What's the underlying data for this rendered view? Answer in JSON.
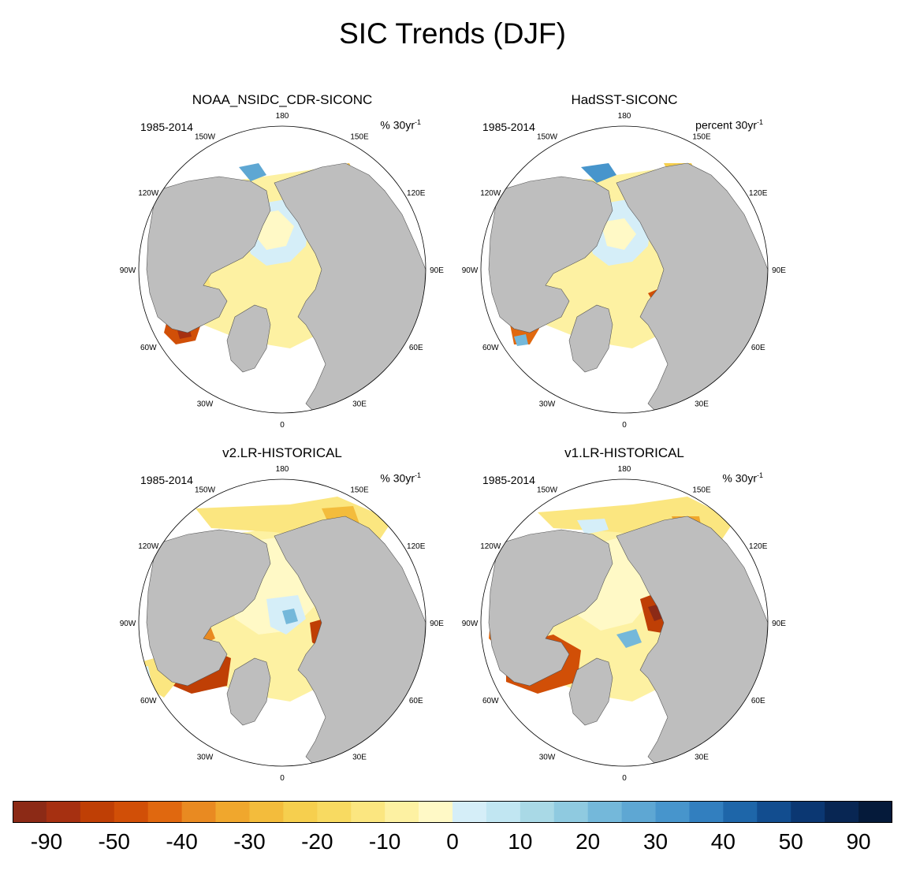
{
  "title": "SIC Trends (DJF)",
  "panels": [
    {
      "title": "NOAA_NSIDC_CDR-SICONC",
      "period": "1985-2014",
      "units_base": "% 30yr",
      "units_exp": "-1",
      "lon_labels": [
        "180",
        "150E",
        "120E",
        "90E",
        "60E",
        "30E",
        "0",
        "30W",
        "60W",
        "90W",
        "120W",
        "150W"
      ]
    },
    {
      "title": "HadSST-SICONC",
      "period": "1985-2014",
      "units_base": "percent 30yr",
      "units_exp": "-1",
      "lon_labels": [
        "180",
        "150E",
        "120E",
        "90E",
        "60E",
        "30E",
        "0",
        "30W",
        "60W",
        "90W",
        "120W",
        "150W"
      ]
    },
    {
      "title": "v2.LR-HISTORICAL",
      "period": "1985-2014",
      "units_base": "% 30yr",
      "units_exp": "-1",
      "lon_labels": [
        "180",
        "150E",
        "120E",
        "90E",
        "60E",
        "30E",
        "0",
        "30W",
        "60W",
        "90W",
        "120W",
        "150W"
      ]
    },
    {
      "title": "v1.LR-HISTORICAL",
      "period": "1985-2014",
      "units_base": "% 30yr",
      "units_exp": "-1",
      "lon_labels": [
        "180",
        "150E",
        "120E",
        "90E",
        "60E",
        "30E",
        "0",
        "30W",
        "60W",
        "90W",
        "120W",
        "150W"
      ]
    }
  ],
  "colorbar": {
    "colors": [
      "#8c2a16",
      "#a63011",
      "#bf3f05",
      "#d14f07",
      "#e0680f",
      "#e98a21",
      "#f0a72d",
      "#f3bc3c",
      "#f6cf4e",
      "#f8da61",
      "#fbe680",
      "#fdf1a2",
      "#fff9c6",
      "#d5eef8",
      "#c1e6f2",
      "#a9d9e6",
      "#8fcae0",
      "#74b8da",
      "#5ea7d3",
      "#4795cc",
      "#327fbf",
      "#1e66a9",
      "#124d8f",
      "#0b3772",
      "#082653",
      "#051a3a"
    ],
    "labels": [
      "-90",
      "-50",
      "-40",
      "-30",
      "-20",
      "-10",
      "0",
      "10",
      "20",
      "30",
      "40",
      "50",
      "90"
    ]
  },
  "map_colors": {
    "land": "#bebebe",
    "ocean": "#ffffff",
    "ice_light_yellow": "#fdf1a2",
    "ice_light_blue": "#d5eef8"
  }
}
